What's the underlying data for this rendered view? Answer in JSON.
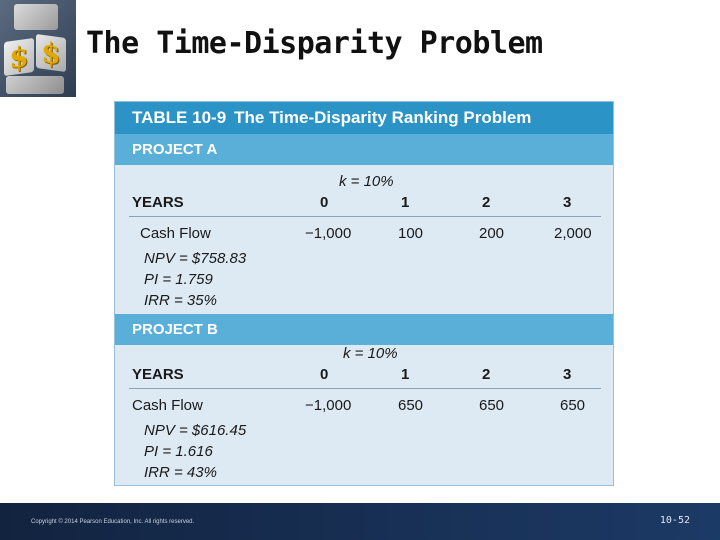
{
  "slide": {
    "title": "The Time-Disparity Problem"
  },
  "table": {
    "number": "TABLE 10-9",
    "title": "The Time-Disparity Ranking Problem",
    "project_a": {
      "label": "PROJECT A",
      "k": "k = 10%",
      "years_label": "YEARS",
      "years": [
        "0",
        "1",
        "2",
        "3"
      ],
      "cash_flow_label": "Cash Flow",
      "cash_flows": [
        "−1,000",
        "100",
        "200",
        "2,000"
      ],
      "npv": "NPV = $758.83",
      "pi": "PI = 1.759",
      "irr": "IRR = 35%"
    },
    "project_b": {
      "label": "PROJECT B",
      "k": "k = 10%",
      "years_label": "YEARS",
      "years": [
        "0",
        "1",
        "2",
        "3"
      ],
      "cash_flow_label": "Cash Flow",
      "cash_flows": [
        "−1,000",
        "650",
        "650",
        "650"
      ],
      "npv": "NPV = $616.45",
      "pi": "PI = 1.616",
      "irr": "IRR = 43%"
    }
  },
  "footer": {
    "copyright": "Copyright © 2014 Pearson Education, Inc. All rights reserved.",
    "page": "10-52"
  },
  "colors": {
    "header_blue": "#2b93c6",
    "project_blue": "#5aafd9",
    "table_bg": "#dde9f3",
    "footer_navy": "#12233f"
  }
}
